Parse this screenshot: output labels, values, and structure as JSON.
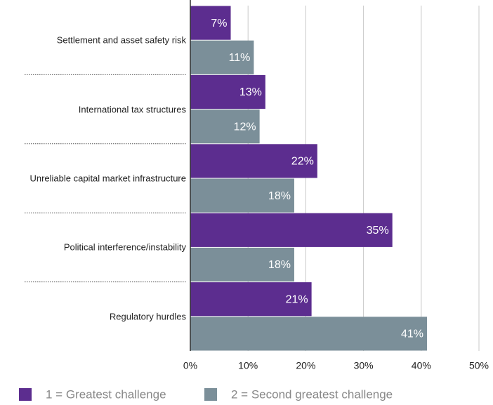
{
  "chart_data": {
    "type": "hbar",
    "categories": [
      "Settlement and asset safety risk",
      "International tax structures",
      "Unreliable capital market infrastructure",
      "Political interference/instability",
      "Regulatory hurdles"
    ],
    "series": [
      {
        "name": "1 = Greatest challenge",
        "color": "#5c2d8f",
        "values": [
          7,
          13,
          22,
          35,
          21
        ],
        "value_labels": [
          "7%",
          "13%",
          "22%",
          "35%",
          "21%"
        ]
      },
      {
        "name": "2 = Second greatest challenge",
        "color": "#7b8f99",
        "values": [
          11,
          12,
          18,
          18,
          41
        ],
        "value_labels": [
          "11%",
          "12%",
          "18%",
          "18%",
          "41%"
        ]
      }
    ],
    "xlim": [
      0,
      50
    ],
    "xticks": [
      {
        "value": 0,
        "label": "0%"
      },
      {
        "value": 10,
        "label": "10%"
      },
      {
        "value": 20,
        "label": "20%"
      },
      {
        "value": 30,
        "label": "30%"
      },
      {
        "value": 40,
        "label": "40%"
      },
      {
        "value": 50,
        "label": "50%"
      }
    ],
    "grid": true
  }
}
